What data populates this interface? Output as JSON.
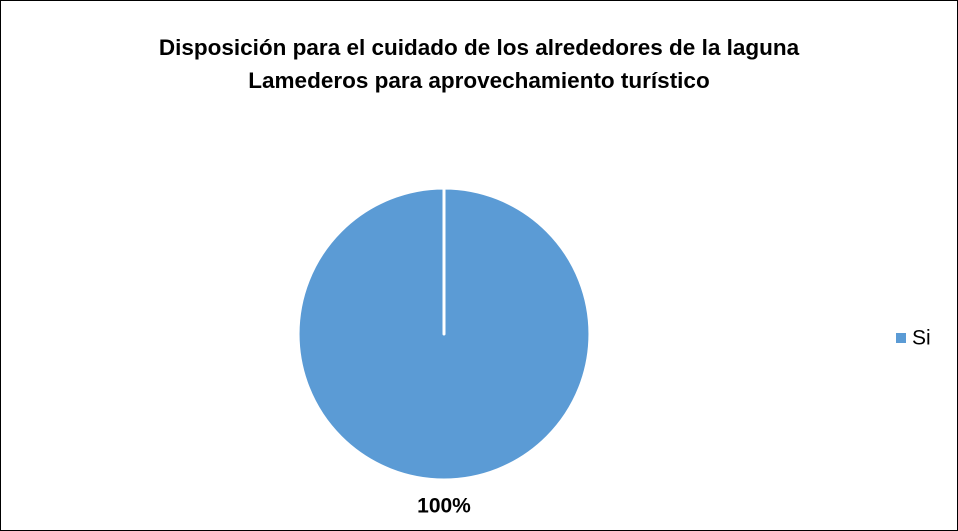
{
  "chart_data": {
    "type": "pie",
    "title": "Disposición para el cuidado de los alrededores de la laguna Lamederos para aprovechamiento turístico",
    "categories": [
      "Si"
    ],
    "values": [
      100
    ],
    "value_labels": [
      "100%"
    ],
    "colors": [
      "#5b9bd5"
    ],
    "legend": "right"
  }
}
